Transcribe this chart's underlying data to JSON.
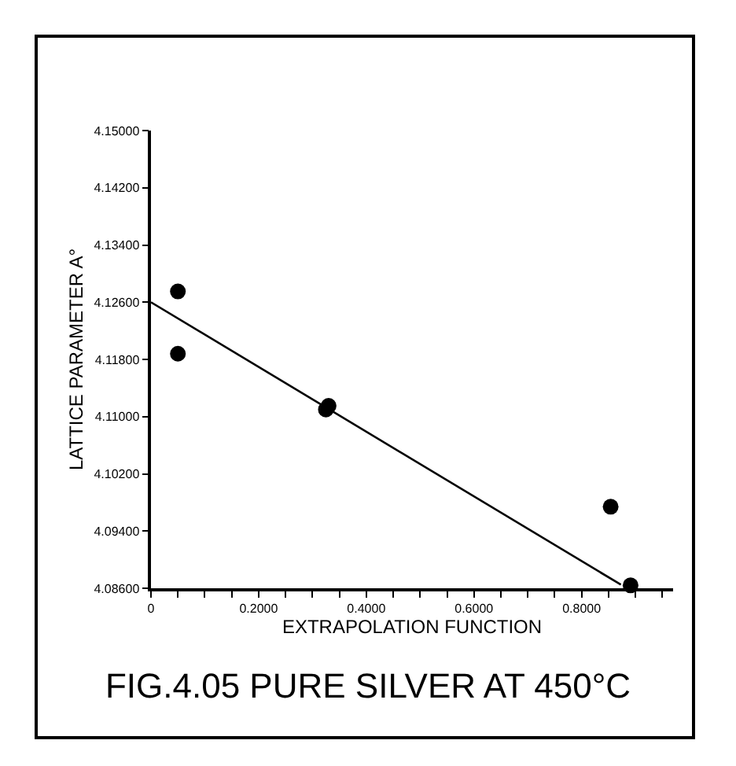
{
  "chart_data": {
    "type": "scatter",
    "title": "FIG.4.05 PURE SILVER AT 450°C",
    "xlabel": "EXTRAPOLATION FUNCTION",
    "ylabel": "LATTICE PARAMETER A°",
    "x": [
      0.05,
      0.05,
      0.325,
      0.33,
      0.854,
      0.891
    ],
    "series": [
      {
        "color": "#000000",
        "marker": "circle",
        "values": [
          4.1275,
          4.1188,
          4.111,
          4.1115,
          4.0974,
          4.0864
        ]
      },
      {
        "type": "line",
        "color": "#000000",
        "marker": "none",
        "x": [
          0,
          0.873
        ],
        "values": [
          4.126,
          4.0865
        ]
      }
    ],
    "xlim": [
      0,
      0.97
    ],
    "ylim": [
      4.086,
      4.15
    ],
    "xticks": [
      {
        "value": 0,
        "label": "0"
      },
      {
        "value": 0.05,
        "label": null
      },
      {
        "value": 0.1,
        "label": null
      },
      {
        "value": 0.15,
        "label": null
      },
      {
        "value": 0.2,
        "label": "0.2000"
      },
      {
        "value": 0.25,
        "label": null
      },
      {
        "value": 0.3,
        "label": null
      },
      {
        "value": 0.35,
        "label": null
      },
      {
        "value": 0.4,
        "label": "0.4000"
      },
      {
        "value": 0.45,
        "label": null
      },
      {
        "value": 0.5,
        "label": null
      },
      {
        "value": 0.55,
        "label": null
      },
      {
        "value": 0.6,
        "label": "0.6000"
      },
      {
        "value": 0.65,
        "label": null
      },
      {
        "value": 0.7,
        "label": null
      },
      {
        "value": 0.75,
        "label": null
      },
      {
        "value": 0.8,
        "label": "0.8000"
      },
      {
        "value": 0.85,
        "label": null
      },
      {
        "value": 0.9,
        "label": null
      },
      {
        "value": 0.95,
        "label": null
      }
    ],
    "yticks": [
      {
        "value": 4.086,
        "label": "4.08600"
      },
      {
        "value": 4.094,
        "label": "4.09400"
      },
      {
        "value": 4.102,
        "label": "4.10200"
      },
      {
        "value": 4.11,
        "label": "4.11000"
      },
      {
        "value": 4.118,
        "label": "4.11800"
      },
      {
        "value": 4.126,
        "label": "4.12600"
      },
      {
        "value": 4.134,
        "label": "4.13400"
      },
      {
        "value": 4.142,
        "label": "4.14200"
      },
      {
        "value": 4.15,
        "label": "4.15000"
      }
    ],
    "grid": false
  }
}
